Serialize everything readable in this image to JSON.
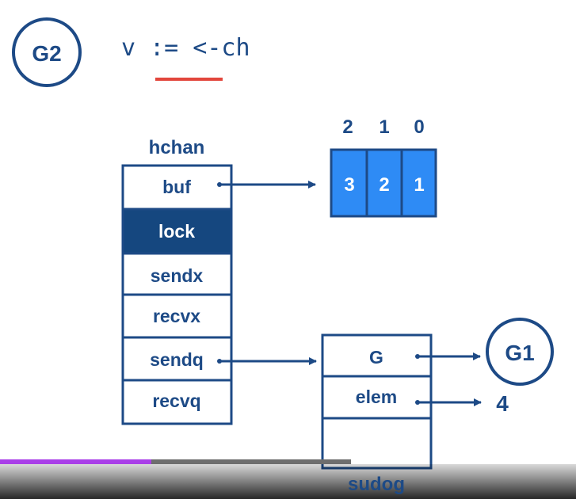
{
  "goroutine_main": "G2",
  "code_line": "v := <-ch",
  "hchan": {
    "title": "hchan",
    "fields": [
      "buf",
      "lock",
      "sendx",
      "recvx",
      "sendq",
      "recvq"
    ],
    "highlighted": "lock"
  },
  "buffer": {
    "indices": [
      "2",
      "1",
      "0"
    ],
    "values": [
      "3",
      "2",
      "1"
    ]
  },
  "sudog": {
    "title": "sudog",
    "fields": [
      "G",
      "elem",
      ""
    ]
  },
  "waiting_goroutine": "G1",
  "elem_value": "4",
  "colors": {
    "ink": "#1d4a86",
    "highlight": "#15477f",
    "buffer_fill": "#2e8bf5",
    "underline": "#e2463c",
    "progress": "#a93ee8"
  },
  "video_progress": 0.43
}
